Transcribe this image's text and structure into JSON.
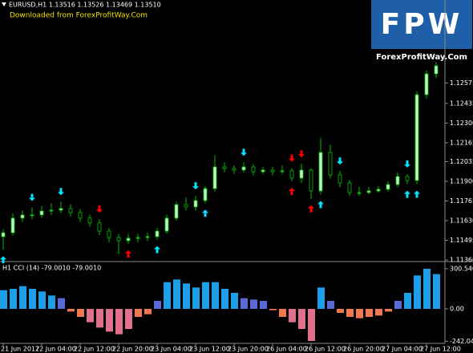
{
  "header": {
    "watermark": "Downloaded from ForexProfitWay.Com",
    "logo_mark": "FPW",
    "logo_site": "ForexProfitWay.Com"
  },
  "chart_data": [
    {
      "type": "candlestick",
      "title": "EURUSD,H1  1.13516 1.13526 1.13469 1.13510",
      "categories": [
        "21 Jun 2017",
        null,
        null,
        null,
        "22 Jun 04:00",
        null,
        null,
        null,
        "22 Jun 12:00",
        null,
        null,
        null,
        "22 Jun 20:00",
        null,
        null,
        null,
        "23 Jun 04:00",
        null,
        null,
        null,
        "23 Jun 12:00",
        null,
        null,
        null,
        "23 Jun 20:00",
        null,
        null,
        null,
        "26 Jun 04:00",
        null,
        null,
        null,
        "26 Jun 12:00",
        null,
        null,
        null,
        "26 Jun 20:00",
        null,
        null,
        null,
        "27 Jun 04:00",
        null,
        null,
        null,
        "27 Jun 12:00",
        null
      ],
      "open": [
        1.1152,
        1.11547,
        1.11647,
        1.11669,
        1.11669,
        1.11696,
        1.11702,
        1.11713,
        1.11685,
        1.11647,
        1.11614,
        1.11558,
        1.11514,
        1.11492,
        1.11509,
        1.11514,
        1.1152,
        1.11558,
        1.11647,
        1.1174,
        1.11724,
        1.11768,
        1.1185,
        1.11999,
        1.11988,
        1.11977,
        1.11999,
        1.11966,
        1.11977,
        1.11966,
        1.11972,
        1.11922,
        1.11977,
        1.11834,
        1.12098,
        1.11944,
        1.11889,
        1.11823,
        1.11823,
        1.11834,
        1.11845,
        1.11878,
        1.11933,
        1.11906,
        1.12495,
        1.12638
      ],
      "high": [
        1.1157,
        1.1168,
        1.117,
        1.1172,
        1.1173,
        1.1175,
        1.1176,
        1.1174,
        1.1171,
        1.1167,
        1.1164,
        1.1158,
        1.1154,
        1.1154,
        1.1154,
        1.1155,
        1.1158,
        1.1167,
        1.1176,
        1.1179,
        1.118,
        1.1187,
        1.1208,
        1.1203,
        1.1201,
        1.1203,
        1.1202,
        1.12,
        1.12,
        1.1201,
        1.1199,
        1.1202,
        1.1199,
        1.122,
        1.1215,
        1.1197,
        1.1191,
        1.1186,
        1.1186,
        1.1187,
        1.119,
        1.1196,
        1.1195,
        1.1252,
        1.1266,
        1.1272
      ],
      "low": [
        1.1143,
        1.1153,
        1.1162,
        1.1164,
        1.1165,
        1.1167,
        1.1168,
        1.1166,
        1.1162,
        1.1159,
        1.1153,
        1.1148,
        1.114,
        1.1147,
        1.1148,
        1.1149,
        1.115,
        1.1154,
        1.1163,
        1.117,
        1.117,
        1.1175,
        1.1183,
        1.1196,
        1.1195,
        1.1196,
        1.1194,
        1.1195,
        1.1194,
        1.1195,
        1.119,
        1.1189,
        1.1178,
        1.1181,
        1.1192,
        1.1186,
        1.118,
        1.118,
        1.1181,
        1.1182,
        1.1183,
        1.1186,
        1.1188,
        1.1188,
        1.1247,
        1.1261
      ],
      "close": [
        1.11547,
        1.11647,
        1.11669,
        1.11669,
        1.11696,
        1.11702,
        1.11713,
        1.11685,
        1.11647,
        1.11614,
        1.11558,
        1.11514,
        1.11492,
        1.11509,
        1.11514,
        1.1152,
        1.11558,
        1.11647,
        1.1174,
        1.11724,
        1.11768,
        1.1185,
        1.11999,
        1.11988,
        1.11977,
        1.11999,
        1.11966,
        1.11977,
        1.11966,
        1.11972,
        1.11922,
        1.11977,
        1.11834,
        1.12098,
        1.11944,
        1.11889,
        1.11823,
        1.11823,
        1.11834,
        1.11845,
        1.11878,
        1.11933,
        1.11906,
        1.12495,
        1.12638,
        1.12693
      ],
      "colors": {
        "up": "#c8f5c8",
        "down": "#000000",
        "wick": "#00c000"
      },
      "arrows": [
        {
          "index": 3,
          "direction": "down",
          "color": "#00e5ff"
        },
        {
          "index": 6,
          "direction": "down",
          "color": "#00e5ff"
        },
        {
          "index": 20,
          "direction": "down",
          "color": "#00e5ff"
        },
        {
          "index": 25,
          "direction": "down",
          "color": "#00e5ff"
        },
        {
          "index": 35,
          "direction": "down",
          "color": "#00e5ff"
        },
        {
          "index": 42,
          "direction": "down",
          "color": "#00e5ff"
        },
        {
          "index": 0,
          "direction": "up",
          "color": "#00e5ff"
        },
        {
          "index": 16,
          "direction": "up",
          "color": "#00e5ff"
        },
        {
          "index": 21,
          "direction": "up",
          "color": "#00e5ff"
        },
        {
          "index": 33,
          "direction": "up",
          "color": "#00e5ff"
        },
        {
          "index": 42,
          "direction": "up",
          "color": "#00e5ff"
        },
        {
          "index": 43,
          "direction": "up",
          "color": "#00e5ff"
        },
        {
          "index": 10,
          "direction": "down",
          "color": "#ff0000"
        },
        {
          "index": 30,
          "direction": "down",
          "color": "#ff0000"
        },
        {
          "index": 31,
          "direction": "down",
          "color": "#ff0000"
        },
        {
          "index": 13,
          "direction": "up",
          "color": "#ff0000"
        },
        {
          "index": 30,
          "direction": "up",
          "color": "#ff0000"
        },
        {
          "index": 32,
          "direction": "up",
          "color": "#ff0000"
        }
      ],
      "ylim": [
        1.1136,
        1.13145
      ],
      "yticks": [
        {
          "value": 1.1136,
          "label": "1.11360"
        },
        1.11495,
        {
          "value": 1.1163,
          "label": "1.11630"
        },
        1.11765,
        {
          "value": 1.119,
          "label": "1.11900"
        },
        1.12035,
        1.12165,
        {
          "value": 1.123,
          "label": "1.12300"
        },
        1.12435,
        1.12575
      ]
    },
    {
      "type": "bar",
      "title": "H1 CCI (14) -79.0010 -79.0010",
      "values": [
        140,
        150,
        170,
        150,
        130,
        100,
        80,
        -20,
        -60,
        -100,
        -140,
        -170,
        -190,
        -150,
        -60,
        -40,
        60,
        200,
        220,
        190,
        160,
        200,
        200,
        150,
        120,
        80,
        70,
        60,
        -10,
        -60,
        -100,
        -150,
        -240,
        160,
        60,
        -30,
        -60,
        -70,
        -60,
        -50,
        -20,
        60,
        120,
        250,
        300,
        260
      ],
      "colors": [
        "#1e9ee8",
        "#1e9ee8",
        "#1e9ee8",
        "#1e9ee8",
        "#1e9ee8",
        "#1e9ee8",
        "#5a6ad8",
        "#f07850",
        "#f07850",
        "#e0708c",
        "#e0708c",
        "#e0708c",
        "#e0708c",
        "#e0708c",
        "#f07850",
        "#f07850",
        "#5a6ad8",
        "#1e9ee8",
        "#1e9ee8",
        "#1e9ee8",
        "#1e9ee8",
        "#1e9ee8",
        "#1e9ee8",
        "#1e9ee8",
        "#1e9ee8",
        "#5a6ad8",
        "#5a6ad8",
        "#5a6ad8",
        "#f07850",
        "#f07850",
        "#e0708c",
        "#e0708c",
        "#e0708c",
        "#1e9ee8",
        "#5a6ad8",
        "#f07850",
        "#f07850",
        "#f07850",
        "#f07850",
        "#f07850",
        "#f07850",
        "#5a6ad8",
        "#1e9ee8",
        "#1e9ee8",
        "#1e9ee8",
        "#1e9ee8"
      ],
      "ylim": [
        -270,
        330
      ],
      "yticks": [
        -242.0421,
        {
          "value": 0,
          "label": "0.00"
        },
        300.5409
      ]
    }
  ]
}
